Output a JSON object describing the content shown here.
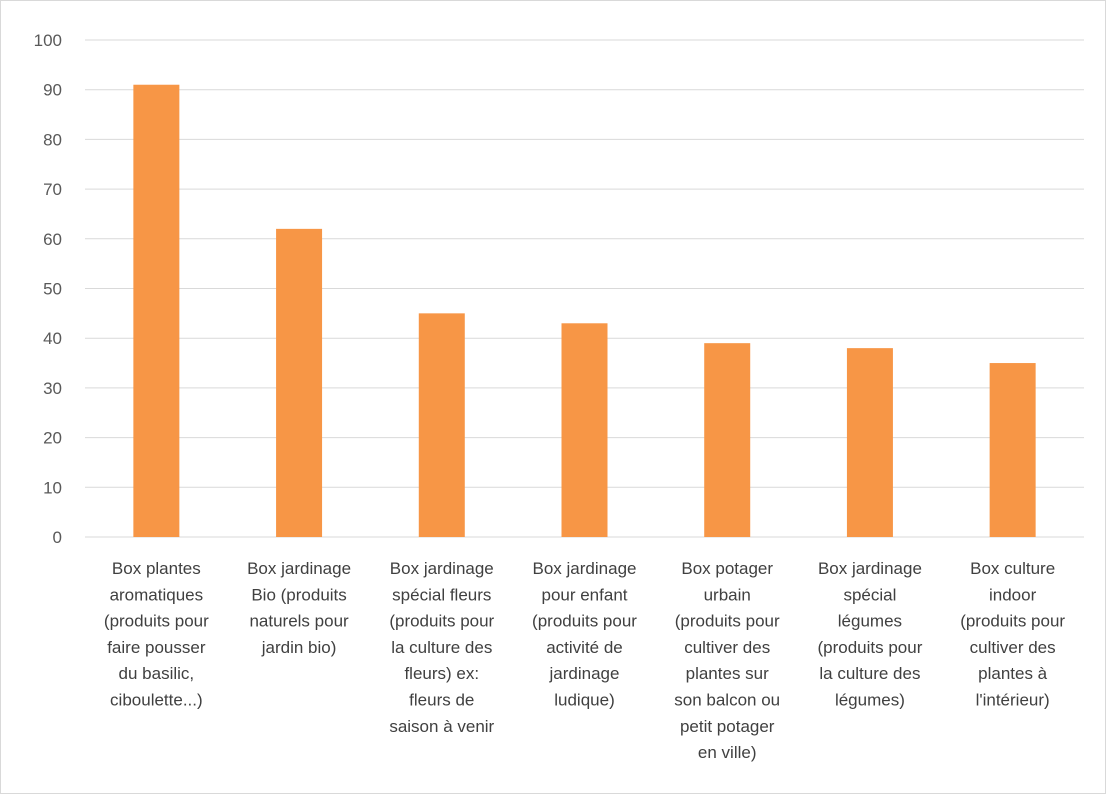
{
  "chart_data": {
    "type": "bar",
    "categories": [
      [
        "Box plantes",
        "aromatiques",
        "(produits pour",
        "faire pousser",
        "du basilic,",
        "ciboulette...)"
      ],
      [
        "Box jardinage",
        "Bio (produits",
        "naturels pour",
        "jardin bio)"
      ],
      [
        "Box jardinage",
        "spécial fleurs",
        "(produits pour",
        "la culture des",
        "fleurs) ex:",
        "fleurs de",
        "saison à venir"
      ],
      [
        "Box jardinage",
        "pour enfant",
        "(produits pour",
        "activité de",
        "jardinage",
        "ludique)"
      ],
      [
        "Box potager",
        "urbain",
        "(produits pour",
        "cultiver des",
        "plantes sur",
        "son balcon ou",
        "petit potager",
        "en ville)"
      ],
      [
        "Box jardinage",
        "spécial",
        "légumes",
        "(produits pour",
        "la culture des",
        "légumes)"
      ],
      [
        "Box culture",
        "indoor",
        "(produits pour",
        "cultiver des",
        "plantes à",
        "l'intérieur)"
      ]
    ],
    "values": [
      91,
      62,
      45,
      43,
      39,
      38,
      35
    ],
    "yticks": [
      "0",
      "10",
      "20",
      "30",
      "40",
      "50",
      "60",
      "70",
      "80",
      "90",
      "100"
    ],
    "ylim": [
      0,
      100
    ],
    "bar_color": "#f79646",
    "grid_color": "#d9d9d9",
    "grid": true,
    "title": "",
    "xlabel": "",
    "ylabel": ""
  }
}
